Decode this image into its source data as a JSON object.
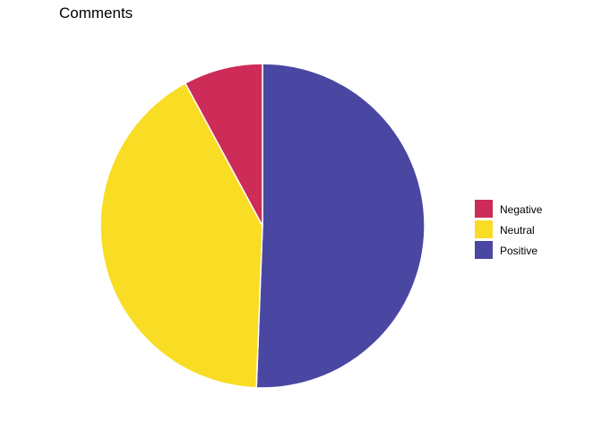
{
  "chart_data": {
    "type": "pie",
    "title": "Comments",
    "legend_position": "right",
    "start_angle": "12 o'clock",
    "direction": "clockwise",
    "slices": [
      {
        "label": "Positive",
        "value": 50.6,
        "color": "#4a47a3"
      },
      {
        "label": "Neutral",
        "value": 41.5,
        "color": "#f9dc24"
      },
      {
        "label": "Negative",
        "value": 7.9,
        "color": "#cc2c57"
      }
    ],
    "legend": [
      "Negative",
      "Neutral",
      "Positive"
    ]
  }
}
